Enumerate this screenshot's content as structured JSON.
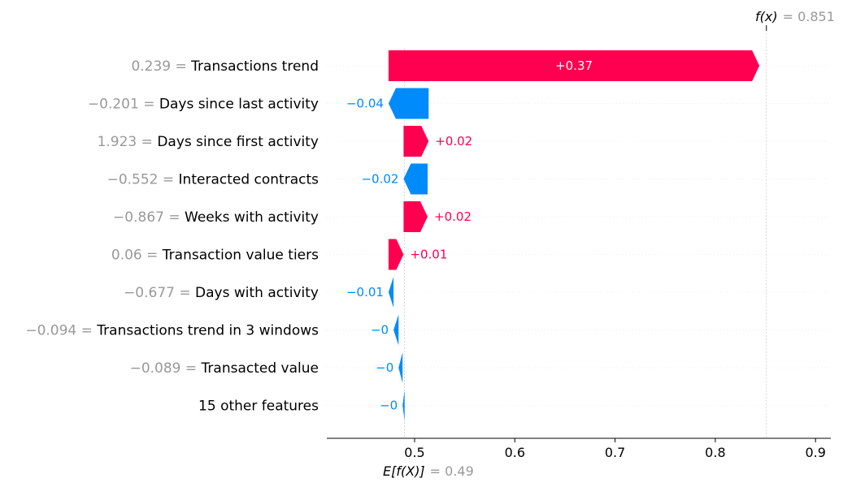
{
  "chart_data": {
    "type": "waterfall",
    "title": "",
    "xlabel": "",
    "ylabel": "",
    "xlim": [
      0.42,
      0.915
    ],
    "base_value": 0.49,
    "output_value": 0.851,
    "expected_label": "E[f(X)]",
    "expected_value_text": "= 0.49",
    "output_label": "f(x)",
    "output_value_text": "= 0.851",
    "x_ticks": [
      0.5,
      0.6,
      0.7,
      0.8,
      0.9
    ],
    "x_tick_labels": [
      "0.5",
      "0.6",
      "0.7",
      "0.8",
      "0.9"
    ],
    "features": [
      {
        "value_text": "0.239 =",
        "name": "Transactions trend",
        "contribution": 0.37,
        "label": "+0.37"
      },
      {
        "value_text": "−0.201 =",
        "name": "Days since last activity",
        "contribution": -0.04,
        "label": "−0.04"
      },
      {
        "value_text": "1.923 =",
        "name": "Days since first activity",
        "contribution": 0.025,
        "label": "+0.02"
      },
      {
        "value_text": "−0.552 =",
        "name": "Interacted contracts",
        "contribution": -0.024,
        "label": "−0.02"
      },
      {
        "value_text": "−0.867 =",
        "name": "Weeks with activity",
        "contribution": 0.024,
        "label": "+0.02"
      },
      {
        "value_text": "0.06 =",
        "name": "Transaction value tiers",
        "contribution": 0.015,
        "label": "+0.01"
      },
      {
        "value_text": "−0.677 =",
        "name": "Days with activity",
        "contribution": -0.005,
        "label": "−0.01"
      },
      {
        "value_text": "−0.094 =",
        "name": "Transactions trend in 3 windows",
        "contribution": -0.005,
        "label": "−0"
      },
      {
        "value_text": "−0.089 =",
        "name": "Transacted value",
        "contribution": -0.004,
        "label": "−0"
      },
      {
        "value_text": "",
        "name": "15 other features",
        "contribution": -0.002,
        "label": "−0"
      }
    ],
    "colors": {
      "positive": "#ff0051",
      "negative": "#008bfb",
      "muted": "#999999"
    }
  }
}
